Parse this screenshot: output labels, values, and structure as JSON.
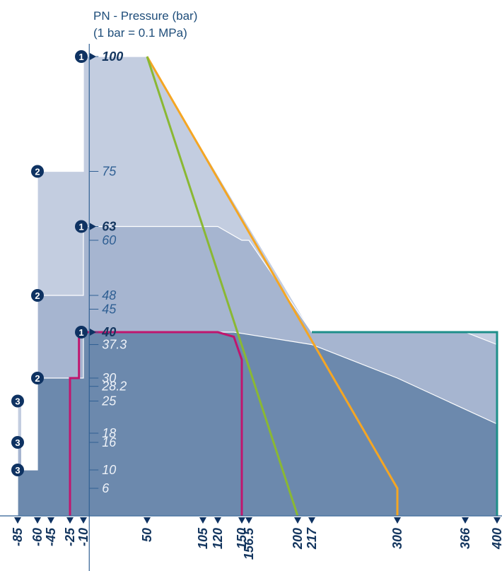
{
  "chart_data": {
    "type": "area",
    "title_lines": [
      "PN - Pressure (bar)",
      "(1 bar = 0.1 MPa)"
    ],
    "xlabel": "",
    "ylabel": "",
    "xlim": [
      -85,
      400
    ],
    "ylim": [
      0,
      100
    ],
    "x_ticks": [
      -85,
      -60,
      -45,
      -25,
      -10,
      50,
      105,
      120,
      150,
      156.5,
      200,
      217,
      300,
      366,
      400
    ],
    "x_tick_labels": [
      "-85",
      "-60",
      "-45",
      "-25",
      "-10",
      "50",
      "105",
      "120",
      "150",
      "156.5",
      "200",
      "217",
      "300",
      "366",
      "400"
    ],
    "y_ticks": [
      6,
      10,
      16,
      18,
      25,
      28.2,
      30,
      37.3,
      40,
      45,
      48,
      60,
      63,
      75,
      100
    ],
    "y_tick_labels": [
      "6",
      "10",
      "16",
      "18",
      "25",
      "28.2",
      "30",
      "37.3",
      "40",
      "45",
      "48",
      "60",
      "63",
      "75",
      "100"
    ],
    "y_bold_ticks": [
      "40",
      "63",
      "100"
    ],
    "grid": false,
    "colors": {
      "band_light": "#c3cde0",
      "band_mid": "#a6b5d0",
      "band_dark": "#6c89ad",
      "axis": "#2f5f93",
      "badge": "#0e3262",
      "orange": "#f5a623",
      "green": "#8ab833",
      "magenta": "#c0166e",
      "teal": "#1e8f8a"
    },
    "areas": [
      {
        "band": "light",
        "points": [
          [
            -85,
            0
          ],
          [
            -85,
            25
          ],
          [
            -80,
            25
          ],
          [
            -80,
            0
          ],
          [
            -60,
            0
          ],
          [
            -60,
            75
          ],
          [
            -10,
            75
          ],
          [
            -10,
            100
          ],
          [
            50,
            100
          ],
          [
            217,
            40
          ],
          [
            400,
            40
          ],
          [
            400,
            0
          ]
        ]
      },
      {
        "band": "mid",
        "points": [
          [
            -85,
            0
          ],
          [
            -85,
            16
          ],
          [
            -80,
            16
          ],
          [
            -80,
            10
          ],
          [
            -60,
            10
          ],
          [
            -60,
            48
          ],
          [
            -10,
            48
          ],
          [
            -10,
            63
          ],
          [
            120,
            63
          ],
          [
            150,
            60
          ],
          [
            156.5,
            60
          ],
          [
            217,
            40
          ],
          [
            366,
            40
          ],
          [
            400,
            37.3
          ],
          [
            400,
            0
          ]
        ]
      },
      {
        "band": "dark",
        "points": [
          [
            -85,
            0
          ],
          [
            -85,
            10
          ],
          [
            -60,
            10
          ],
          [
            -60,
            30
          ],
          [
            -10,
            30
          ],
          [
            -10,
            40
          ],
          [
            140,
            40
          ],
          [
            217,
            37.3
          ],
          [
            300,
            30
          ],
          [
            400,
            20
          ],
          [
            400,
            0
          ]
        ]
      }
    ],
    "series": [
      {
        "color_key": "orange",
        "points": [
          [
            50,
            100
          ],
          [
            300,
            6
          ],
          [
            300,
            0
          ]
        ]
      },
      {
        "color_key": "green",
        "points": [
          [
            50,
            100
          ],
          [
            200,
            0
          ]
        ]
      },
      {
        "color_key": "magenta",
        "points": [
          [
            -25,
            0
          ],
          [
            -25,
            30
          ],
          [
            -15,
            30
          ],
          [
            -15,
            40
          ],
          [
            120,
            40
          ],
          [
            140,
            39
          ],
          [
            150,
            34
          ],
          [
            150,
            0
          ]
        ]
      },
      {
        "color_key": "teal",
        "points": [
          [
            217,
            40
          ],
          [
            400,
            40
          ],
          [
            400,
            0
          ]
        ]
      }
    ],
    "badges": [
      {
        "label": "1",
        "x": -10,
        "y": 100
      },
      {
        "label": "2",
        "x": -60,
        "y": 75
      },
      {
        "label": "1",
        "x": -10,
        "y": 63
      },
      {
        "label": "2",
        "x": -60,
        "y": 48
      },
      {
        "label": "1",
        "x": -10,
        "y": 40
      },
      {
        "label": "2",
        "x": -60,
        "y": 30
      },
      {
        "label": "3",
        "x": -85,
        "y": 25
      },
      {
        "label": "3",
        "x": -85,
        "y": 16
      },
      {
        "label": "3",
        "x": -85,
        "y": 10
      }
    ]
  }
}
